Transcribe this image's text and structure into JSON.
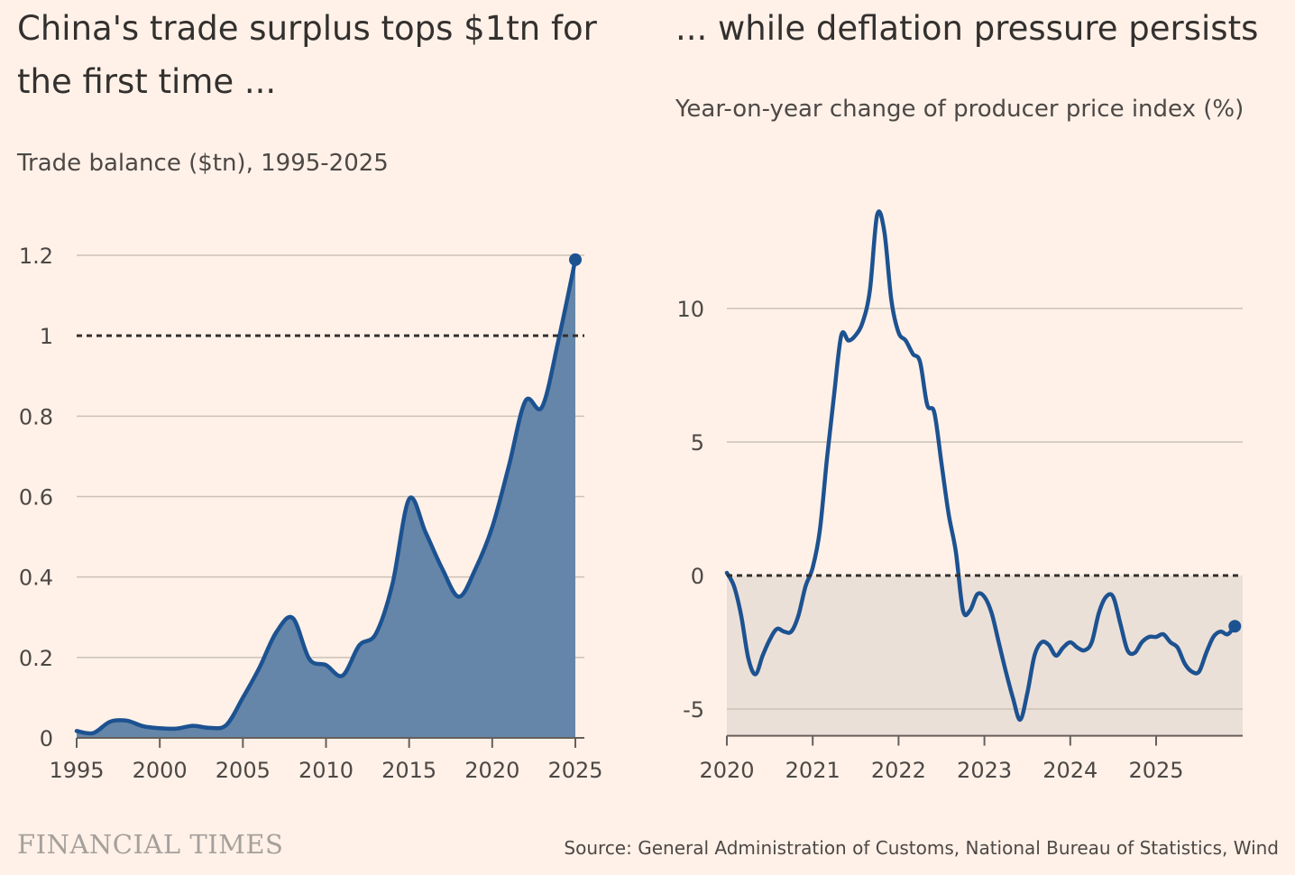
{
  "left_title": "China's trade surplus tops $1tn for the first time ...",
  "right_title": "... while deflation pressure persists",
  "brand": "FINANCIAL TIMES",
  "source": "Source: General Administration of Customs, National Bureau of Statistics, Wind",
  "colors": {
    "background": "#fff1e8",
    "line": "#1d5291",
    "area": "#6586a9",
    "negative_band": "#ebe0d7",
    "grid": "#ccc1b7"
  },
  "chart_data": [
    {
      "type": "area",
      "subtitle": "Trade balance ($tn), 1995-2025",
      "xlim": [
        1995,
        2025
      ],
      "ylim": [
        0,
        1.2
      ],
      "x_ticks": [
        "1995",
        "2000",
        "2005",
        "2010",
        "2015",
        "2020",
        "2025"
      ],
      "y_ticks": [
        "0",
        "0.2",
        "0.4",
        "0.6",
        "0.8",
        "1",
        "1.2"
      ],
      "reference_line": 1,
      "series": [
        {
          "x": [
            1995,
            1996,
            1997,
            1998,
            1999,
            2000,
            2001,
            2002,
            2003,
            2004,
            2005,
            2006,
            2007,
            2008,
            2009,
            2010,
            2011,
            2012,
            2013,
            2014,
            2015,
            2016,
            2017,
            2018,
            2019,
            2020,
            2021,
            2022,
            2023,
            2024,
            2025
          ],
          "values": [
            0.017,
            0.012,
            0.04,
            0.043,
            0.029,
            0.024,
            0.023,
            0.03,
            0.025,
            0.032,
            0.1,
            0.175,
            0.262,
            0.298,
            0.196,
            0.181,
            0.155,
            0.23,
            0.259,
            0.383,
            0.594,
            0.51,
            0.42,
            0.351,
            0.421,
            0.524,
            0.676,
            0.838,
            0.823,
            0.992,
            1.189
          ]
        }
      ]
    },
    {
      "type": "line",
      "subtitle": "Year-on-year change of producer price index (%)",
      "xlim": [
        2020,
        2026
      ],
      "ylim": [
        -6,
        14
      ],
      "x_ticks": [
        "2020",
        "2021",
        "2022",
        "2023",
        "2024",
        "2025"
      ],
      "y_ticks": [
        "-5",
        "0",
        "5",
        "10"
      ],
      "reference_line": 0,
      "series": [
        {
          "x": [
            "2020-01",
            "2020-02",
            "2020-03",
            "2020-04",
            "2020-05",
            "2020-06",
            "2020-07",
            "2020-08",
            "2020-09",
            "2020-10",
            "2020-11",
            "2020-12",
            "2021-01",
            "2021-02",
            "2021-03",
            "2021-04",
            "2021-05",
            "2021-06",
            "2021-07",
            "2021-08",
            "2021-09",
            "2021-10",
            "2021-11",
            "2021-12",
            "2022-01",
            "2022-02",
            "2022-03",
            "2022-04",
            "2022-05",
            "2022-06",
            "2022-07",
            "2022-08",
            "2022-09",
            "2022-10",
            "2022-11",
            "2022-12",
            "2023-01",
            "2023-02",
            "2023-03",
            "2023-04",
            "2023-05",
            "2023-06",
            "2023-07",
            "2023-08",
            "2023-09",
            "2023-10",
            "2023-11",
            "2023-12",
            "2024-01",
            "2024-02",
            "2024-03",
            "2024-04",
            "2024-05",
            "2024-06",
            "2024-07",
            "2024-08",
            "2024-09",
            "2024-10",
            "2024-11",
            "2024-12",
            "2025-01",
            "2025-02",
            "2025-03",
            "2025-04",
            "2025-05",
            "2025-06",
            "2025-07",
            "2025-08",
            "2025-09",
            "2025-10",
            "2025-11",
            "2025-12"
          ],
          "values": [
            0.1,
            -0.4,
            -1.5,
            -3.1,
            -3.7,
            -3.0,
            -2.4,
            -2.0,
            -2.1,
            -2.1,
            -1.5,
            -0.4,
            0.3,
            1.7,
            4.4,
            6.8,
            9.0,
            8.8,
            9.0,
            9.5,
            10.7,
            13.5,
            12.9,
            10.3,
            9.1,
            8.8,
            8.3,
            8.0,
            6.4,
            6.1,
            4.2,
            2.3,
            0.9,
            -1.3,
            -1.3,
            -0.7,
            -0.8,
            -1.4,
            -2.5,
            -3.6,
            -4.6,
            -5.4,
            -4.4,
            -3.0,
            -2.5,
            -2.6,
            -3.0,
            -2.7,
            -2.5,
            -2.7,
            -2.8,
            -2.5,
            -1.4,
            -0.8,
            -0.8,
            -1.8,
            -2.8,
            -2.9,
            -2.5,
            -2.3,
            -2.3,
            -2.2,
            -2.5,
            -2.7,
            -3.3,
            -3.6,
            -3.6,
            -2.9,
            -2.3,
            -2.1,
            -2.2,
            -1.9
          ]
        }
      ]
    }
  ]
}
